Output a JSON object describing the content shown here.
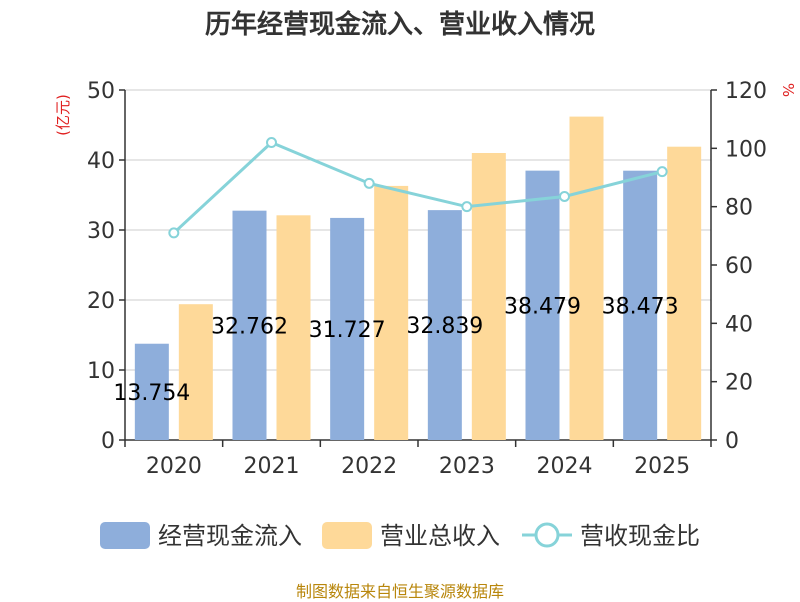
{
  "title": "历年经营现金流入、营业收入情况",
  "source": "制图数据来自恒生聚源数据库",
  "chart_data": {
    "type": "bar",
    "categories": [
      "2020",
      "2021",
      "2022",
      "2023",
      "2024",
      "2025"
    ],
    "series": [
      {
        "name": "经营现金流入",
        "type": "bar",
        "axis": "left",
        "color": "#8eaedb",
        "values": [
          13.754,
          32.762,
          31.727,
          32.839,
          38.479,
          38.473
        ],
        "labels": [
          "13.754",
          "32.762",
          "31.727",
          "32.839",
          "38.479",
          "38.473"
        ]
      },
      {
        "name": "营业总收入",
        "type": "bar",
        "axis": "left",
        "color": "#fed999",
        "values": [
          19.4,
          32.1,
          36.3,
          41.0,
          46.2,
          41.9
        ]
      },
      {
        "name": "营收现金比",
        "type": "line",
        "axis": "right",
        "color": "#86d3d9",
        "values": [
          71,
          102,
          88,
          80,
          83.5,
          92
        ]
      }
    ],
    "y_left": {
      "label": "(亿元)",
      "min": 0,
      "max": 50,
      "ticks": [
        "0",
        "10",
        "20",
        "30",
        "40",
        "50"
      ]
    },
    "y_right": {
      "label": "%",
      "min": 0,
      "max": 120,
      "ticks": [
        "0",
        "20",
        "40",
        "60",
        "80",
        "100",
        "120"
      ]
    },
    "grid": true,
    "legend_position": "bottom"
  }
}
